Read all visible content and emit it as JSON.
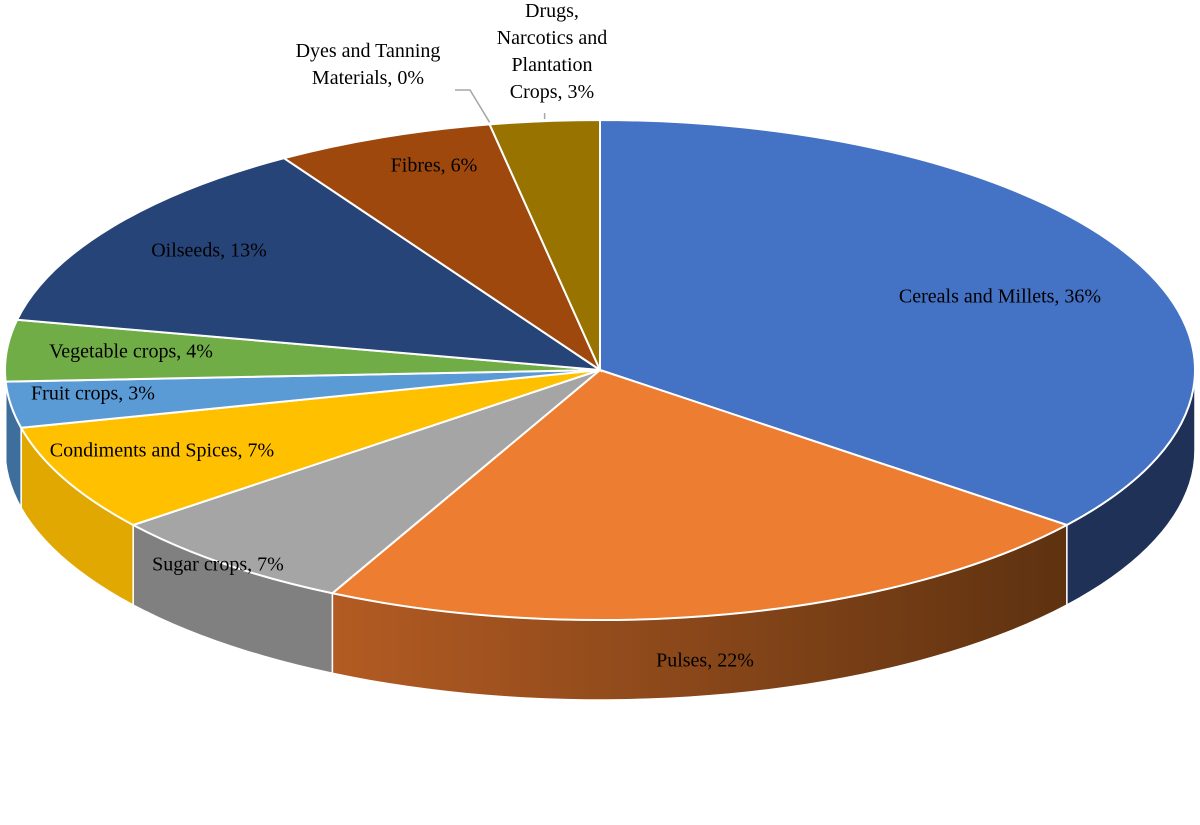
{
  "chart_data": {
    "type": "pie",
    "style": "3d",
    "title": "",
    "slices": [
      {
        "label": "Cereals and Millets",
        "display": "Cereals and Millets, 36%",
        "value": 36,
        "color": "#4472C4",
        "side_color": "#1F3157"
      },
      {
        "label": "Pulses",
        "display": "Pulses, 22%",
        "value": 22,
        "color": "#ED7D31",
        "side_color": "#8A4A1F"
      },
      {
        "label": "Sugar crops",
        "display": "Sugar crops, 7%",
        "value": 7,
        "color": "#A5A5A5",
        "side_color": "#808080"
      },
      {
        "label": "Condiments and Spices",
        "display": "Condiments and Spices, 7%",
        "value": 7,
        "color": "#FFC000",
        "side_color": "#E0A800"
      },
      {
        "label": "Fruit crops",
        "display": "Fruit crops, 3%",
        "value": 3,
        "color": "#5B9BD5",
        "side_color": "#3E6F9C"
      },
      {
        "label": "Vegetable crops",
        "display": "Vegetable crops, 4%",
        "value": 4,
        "color": "#70AD47",
        "side_color": "#4E7A32"
      },
      {
        "label": "Oilseeds",
        "display": "Oilseeds, 13%",
        "value": 13,
        "color": "#264478",
        "side_color": "#17294A"
      },
      {
        "label": "Fibres",
        "display": "Fibres, 6%",
        "value": 6,
        "color": "#9E480E",
        "side_color": "#6B300A"
      },
      {
        "label": "Dyes and Tanning Materials",
        "display": "Dyes and Tanning Materials, 0%",
        "value": 0,
        "color": "#636363",
        "side_color": "#404040"
      },
      {
        "label": "Drugs, Narcotics and Plantation Crops",
        "display": "Drugs, Narcotics and Plantation Crops, 3%",
        "value": 3,
        "color": "#997300",
        "side_color": "#6B5000"
      }
    ]
  }
}
